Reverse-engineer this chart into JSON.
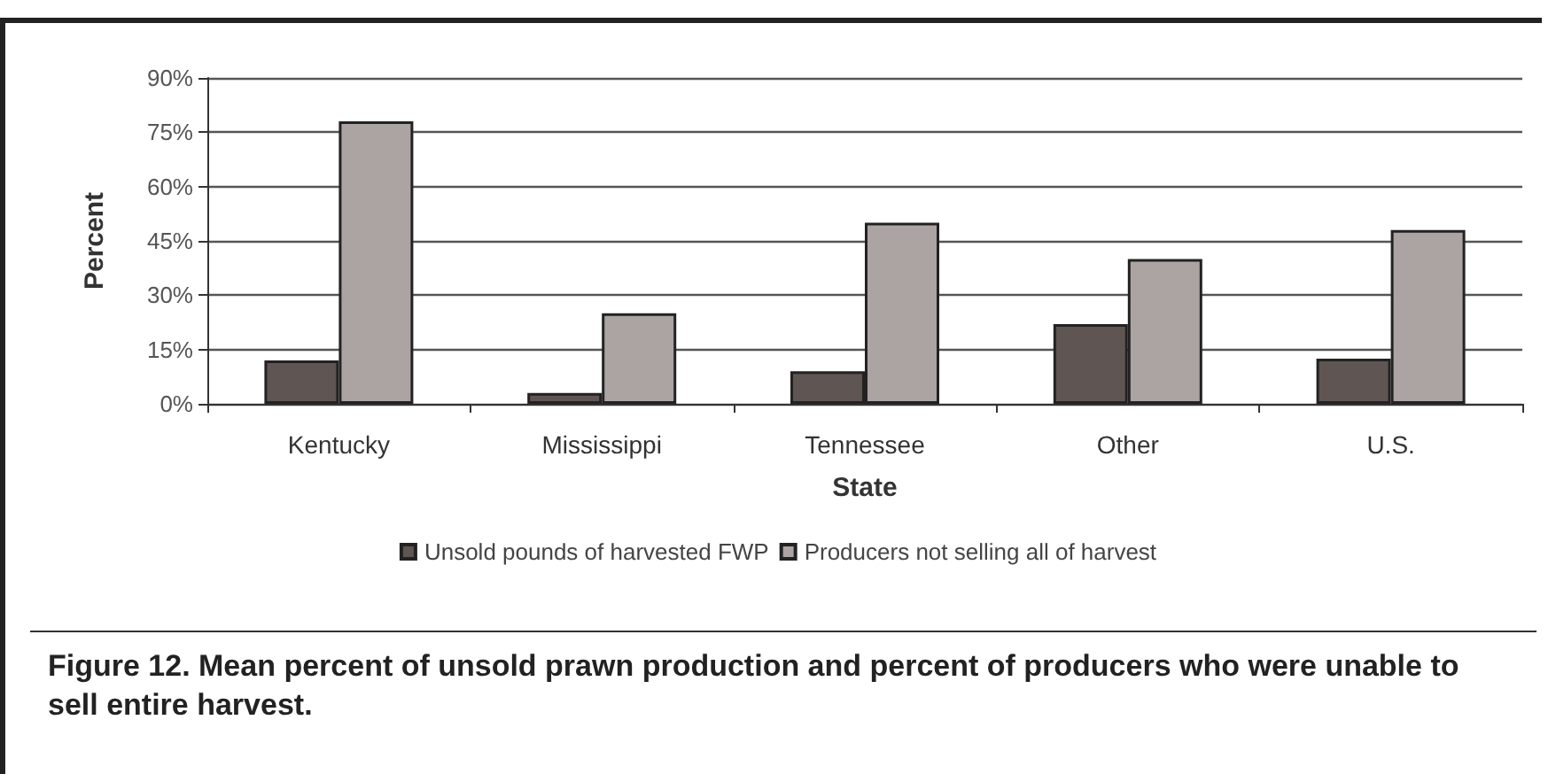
{
  "chart_data": {
    "type": "bar",
    "title": "Figure 12. Mean percent of unsold prawn production and percent of producers who were unable to sell entire harvest.",
    "xlabel": "State",
    "ylabel": "Percent",
    "categories": [
      "Kentucky",
      "Mississippi",
      "Tennessee",
      "Other",
      "U.S."
    ],
    "series": [
      {
        "name": "Unsold pounds of harvested FWP",
        "color": "#5f5552",
        "values": [
          12,
          3,
          9,
          22,
          12.5
        ]
      },
      {
        "name": "Producers not selling all of harvest",
        "color": "#aca4a2",
        "values": [
          78,
          25,
          50,
          40,
          48
        ]
      }
    ],
    "ylim": [
      0,
      90
    ],
    "yticks": [
      {
        "value": 0,
        "label": "0%"
      },
      {
        "value": 15,
        "label": "15%"
      },
      {
        "value": 30,
        "label": "30%"
      },
      {
        "value": 45,
        "label": "45%"
      },
      {
        "value": 60,
        "label": "60%"
      },
      {
        "value": 75,
        "label": "75%"
      },
      {
        "value": 90,
        "label": "90%"
      }
    ],
    "grid": "y",
    "legend": "bottom"
  }
}
